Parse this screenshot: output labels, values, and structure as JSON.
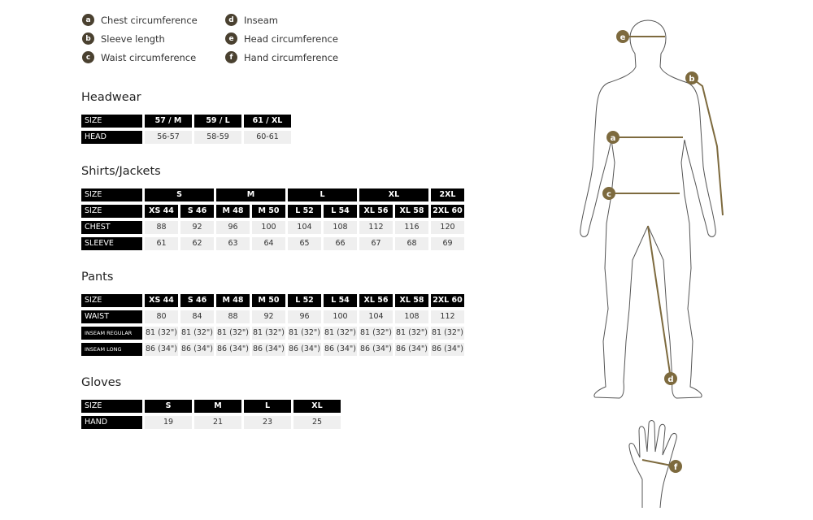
{
  "legend": [
    {
      "key": "a",
      "label": "Chest circumference"
    },
    {
      "key": "b",
      "label": "Sleeve length"
    },
    {
      "key": "c",
      "label": "Waist circumference"
    },
    {
      "key": "d",
      "label": "Inseam"
    },
    {
      "key": "e",
      "label": "Head circumference"
    },
    {
      "key": "f",
      "label": "Hand circumference"
    }
  ],
  "colors": {
    "accent": "#7d6a3e",
    "badge": "#4a4130",
    "header_bg": "#000000",
    "cell_bg": "#efefef"
  },
  "headwear": {
    "title": "Headwear",
    "size_label": "SIZE",
    "sizes": [
      "57 / M",
      "59 / L",
      "61 / XL"
    ],
    "row_label": "HEAD",
    "values": [
      "56-57",
      "58-59",
      "60-61"
    ]
  },
  "shirts": {
    "title": "Shirts/Jackets",
    "size_label": "SIZE",
    "groups": [
      "S",
      "M",
      "L",
      "XL",
      "2XL"
    ],
    "sizes": [
      "XS 44",
      "S 46",
      "M 48",
      "M 50",
      "L 52",
      "L 54",
      "XL 56",
      "XL 58",
      "2XL 60"
    ],
    "chest_label": "CHEST",
    "chest": [
      "88",
      "92",
      "96",
      "100",
      "104",
      "108",
      "112",
      "116",
      "120"
    ],
    "sleeve_label": "SLEEVE",
    "sleeve": [
      "61",
      "62",
      "63",
      "64",
      "65",
      "66",
      "67",
      "68",
      "69"
    ]
  },
  "pants": {
    "title": "Pants",
    "size_label": "SIZE",
    "sizes": [
      "XS 44",
      "S 46",
      "M 48",
      "M 50",
      "L 52",
      "L 54",
      "XL 56",
      "XL 58",
      "2XL 60"
    ],
    "waist_label": "WAIST",
    "waist": [
      "80",
      "84",
      "88",
      "92",
      "96",
      "100",
      "104",
      "108",
      "112"
    ],
    "inseam_regular_label": "INSEAM REGULAR",
    "inseam_regular": [
      "81 (32\")",
      "81 (32\")",
      "81 (32\")",
      "81 (32\")",
      "81 (32\")",
      "81 (32\")",
      "81 (32\")",
      "81 (32\")",
      "81 (32\")"
    ],
    "inseam_long_label": "INSEAM LONG",
    "inseam_long": [
      "86 (34\")",
      "86 (34\")",
      "86 (34\")",
      "86 (34\")",
      "86 (34\")",
      "86 (34\")",
      "86 (34\")",
      "86 (34\")",
      "86 (34\")"
    ]
  },
  "gloves": {
    "title": "Gloves",
    "size_label": "SIZE",
    "sizes": [
      "S",
      "M",
      "L",
      "XL"
    ],
    "row_label": "HAND",
    "values": [
      "19",
      "21",
      "23",
      "25"
    ]
  }
}
